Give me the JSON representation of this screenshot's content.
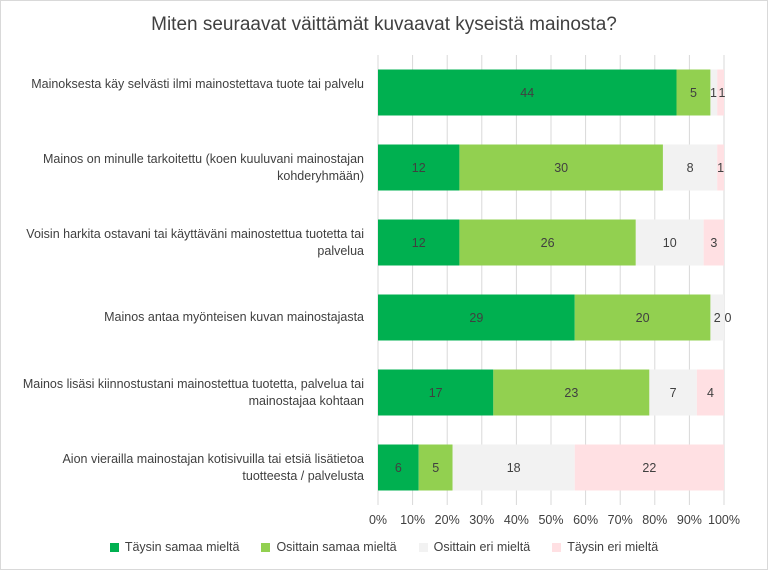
{
  "chart_data": {
    "type": "bar",
    "orientation": "horizontal",
    "stacked": "percent",
    "title": "Miten seuraavat väittämät kuvaavat kyseistä mainosta?",
    "categories": [
      "Mainoksesta käy selvästi ilmi mainostettava tuote tai palvelu",
      "Mainos on minulle tarkoitettu (koen kuuluvani mainostajan kohderyhmään)",
      "Voisin harkita ostavani tai käyttäväni mainostettua tuotetta tai palvelua",
      "Mainos antaa myönteisen kuvan mainostajasta",
      "Mainos lisäsi kiinnostustani mainostettua tuotetta, palvelua tai mainostajaa kohtaan",
      "Aion vierailla mainostajan kotisivuilla tai etsiä lisätietoa tuotteesta / palvelusta"
    ],
    "series": [
      {
        "name": "Täysin samaa mieltä",
        "color": "#00b050",
        "values": [
          44,
          12,
          12,
          29,
          17,
          6
        ]
      },
      {
        "name": "Osittain samaa mieltä",
        "color": "#92d050",
        "values": [
          5,
          30,
          26,
          20,
          23,
          5
        ]
      },
      {
        "name": "Osittain eri mieltä",
        "color": "#f2f2f2",
        "values": [
          1,
          8,
          10,
          2,
          7,
          18
        ]
      },
      {
        "name": "Täysin eri mieltä",
        "color": "#ffe0e3",
        "values": [
          1,
          1,
          3,
          0,
          4,
          22
        ]
      }
    ],
    "segment_labels": [
      [
        "44",
        "5",
        "1",
        "1"
      ],
      [
        "12",
        "30",
        "8",
        "1"
      ],
      [
        "12",
        "26",
        "10",
        "3"
      ],
      [
        "29",
        "20",
        "2",
        "0"
      ],
      [
        "17",
        "23",
        "7",
        "4"
      ],
      [
        "6",
        "5",
        "18",
        "22"
      ]
    ],
    "xlim": [
      0,
      100
    ],
    "xticks": [
      "0%",
      "10%",
      "20%",
      "30%",
      "40%",
      "50%",
      "60%",
      "70%",
      "80%",
      "90%",
      "100%"
    ],
    "legend_position": "bottom",
    "grid": true
  }
}
